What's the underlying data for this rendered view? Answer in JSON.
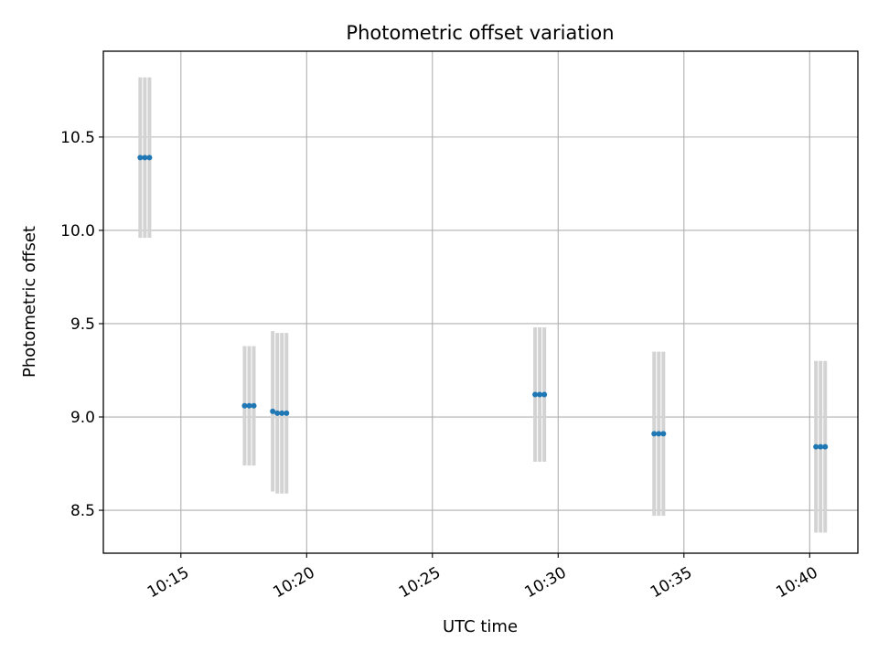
{
  "chart_data": {
    "type": "scatter",
    "title": "Photometric offset variation",
    "xlabel": "UTC time",
    "ylabel": "Photometric offset",
    "x_axis_kind": "time",
    "xlim": [
      "10:11:55",
      "10:41:55"
    ],
    "ylim": [
      8.27,
      10.96
    ],
    "x_ticks": [
      "10:15",
      "10:20",
      "10:25",
      "10:30",
      "10:35",
      "10:40"
    ],
    "y_ticks": [
      "8.5",
      "9.0",
      "9.5",
      "10.0",
      "10.5"
    ],
    "grid": true,
    "series": [
      {
        "marker_color": "#1f77b4",
        "errorbar_color": "#d3d3d3",
        "points": [
          {
            "x": "10:13:23",
            "y": 10.39,
            "yerr": 0.43
          },
          {
            "x": "10:13:34",
            "y": 10.39,
            "yerr": 0.43
          },
          {
            "x": "10:13:45",
            "y": 10.39,
            "yerr": 0.43
          },
          {
            "x": "10:17:32",
            "y": 9.06,
            "yerr": 0.32
          },
          {
            "x": "10:17:43",
            "y": 9.06,
            "yerr": 0.32
          },
          {
            "x": "10:17:54",
            "y": 9.06,
            "yerr": 0.32
          },
          {
            "x": "10:18:39",
            "y": 9.03,
            "yerr": 0.43
          },
          {
            "x": "10:18:50",
            "y": 9.02,
            "yerr": 0.43
          },
          {
            "x": "10:19:01",
            "y": 9.02,
            "yerr": 0.43
          },
          {
            "x": "10:19:12",
            "y": 9.02,
            "yerr": 0.43
          },
          {
            "x": "10:29:05",
            "y": 9.12,
            "yerr": 0.36
          },
          {
            "x": "10:29:16",
            "y": 9.12,
            "yerr": 0.36
          },
          {
            "x": "10:29:27",
            "y": 9.12,
            "yerr": 0.36
          },
          {
            "x": "10:33:49",
            "y": 8.91,
            "yerr": 0.44
          },
          {
            "x": "10:34:00",
            "y": 8.91,
            "yerr": 0.44
          },
          {
            "x": "10:34:11",
            "y": 8.91,
            "yerr": 0.44
          },
          {
            "x": "10:40:15",
            "y": 8.84,
            "yerr": 0.46
          },
          {
            "x": "10:40:26",
            "y": 8.84,
            "yerr": 0.46
          },
          {
            "x": "10:40:37",
            "y": 8.84,
            "yerr": 0.46
          }
        ]
      }
    ]
  }
}
